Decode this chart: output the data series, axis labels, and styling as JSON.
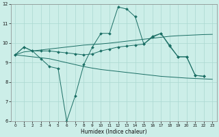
{
  "xlabel": "Humidex (Indice chaleur)",
  "bg_color": "#cceee8",
  "grid_color": "#aad8d0",
  "line_color": "#1a6e64",
  "xlim": [
    -0.5,
    23.5
  ],
  "ylim": [
    6,
    12
  ],
  "xticks": [
    0,
    1,
    2,
    3,
    4,
    5,
    6,
    7,
    8,
    9,
    10,
    11,
    12,
    13,
    14,
    15,
    16,
    17,
    18,
    19,
    20,
    21,
    22,
    23
  ],
  "yticks": [
    6,
    7,
    8,
    9,
    10,
    11,
    12
  ],
  "series": [
    {
      "x": [
        0,
        1,
        2,
        3,
        4,
        5,
        6,
        7,
        8,
        9,
        10,
        11,
        12,
        13,
        14,
        15,
        16,
        17,
        18,
        19,
        20,
        21,
        22
      ],
      "y": [
        9.4,
        9.8,
        9.6,
        9.2,
        8.8,
        8.7,
        6.0,
        7.3,
        8.9,
        9.8,
        10.5,
        10.5,
        11.85,
        11.75,
        11.35,
        9.95,
        10.3,
        10.5,
        9.85,
        9.3,
        9.3,
        8.35,
        8.3
      ],
      "has_markers": true
    },
    {
      "x": [
        0,
        1,
        2,
        3,
        4,
        5,
        6,
        7,
        8,
        9,
        10,
        11,
        12,
        13,
        14,
        15,
        16,
        17,
        18,
        19,
        20,
        21,
        22,
        23
      ],
      "y": [
        9.4,
        9.55,
        9.6,
        9.65,
        9.7,
        9.75,
        9.8,
        9.85,
        9.9,
        9.93,
        9.96,
        10.0,
        10.05,
        10.1,
        10.15,
        10.2,
        10.25,
        10.3,
        10.35,
        10.38,
        10.4,
        10.42,
        10.44,
        10.45
      ],
      "has_markers": false
    },
    {
      "x": [
        0,
        1,
        2,
        3,
        4,
        5,
        6,
        7,
        8,
        9,
        10,
        11,
        12,
        13,
        14,
        15,
        16,
        17,
        18,
        19,
        20,
        21,
        22,
        23
      ],
      "y": [
        9.4,
        9.35,
        9.3,
        9.25,
        9.2,
        9.1,
        9.0,
        8.9,
        8.8,
        8.72,
        8.65,
        8.6,
        8.55,
        8.5,
        8.45,
        8.4,
        8.35,
        8.3,
        8.27,
        8.24,
        8.21,
        8.19,
        8.17,
        8.15
      ],
      "has_markers": false
    },
    {
      "x": [
        0,
        1,
        2,
        3,
        4,
        5,
        6,
        7,
        8,
        9,
        10,
        11,
        12,
        13,
        14,
        15,
        16,
        17,
        18,
        19,
        20,
        21,
        22
      ],
      "y": [
        9.4,
        9.8,
        9.6,
        9.6,
        9.6,
        9.55,
        9.5,
        9.45,
        9.4,
        9.45,
        9.6,
        9.7,
        9.8,
        9.85,
        9.9,
        9.95,
        10.35,
        10.5,
        9.9,
        9.3,
        9.3,
        8.35,
        8.3
      ],
      "has_markers": true
    }
  ]
}
